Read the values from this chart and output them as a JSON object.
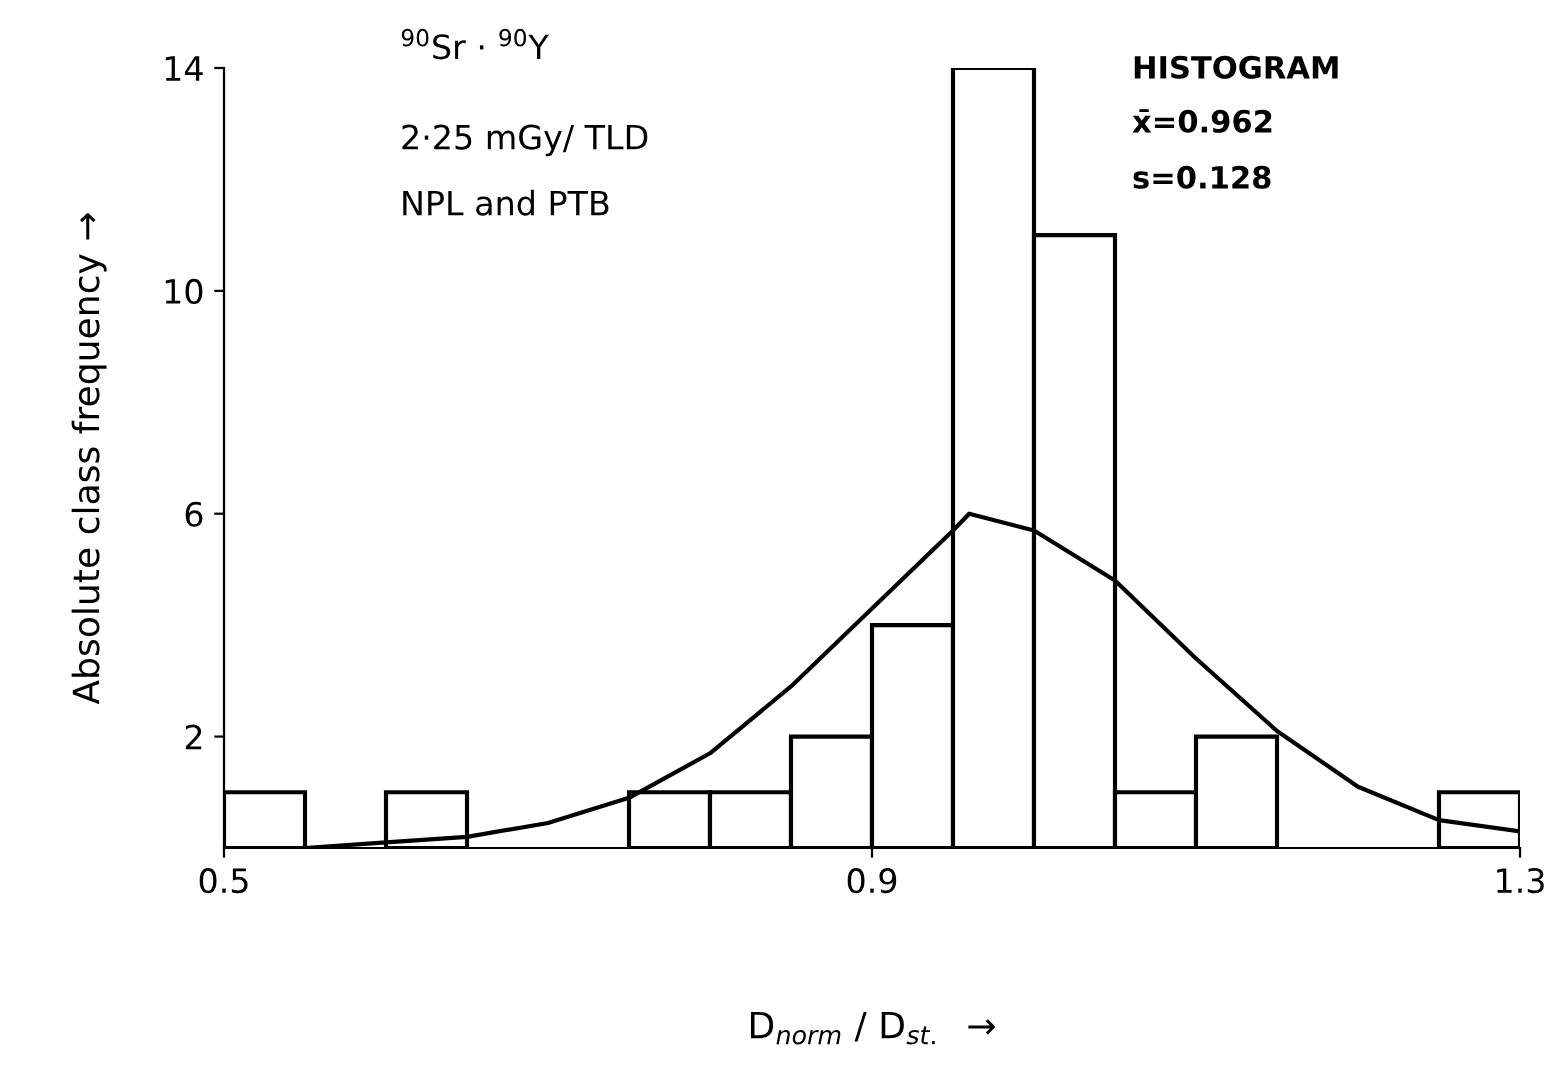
{
  "chart_data": {
    "type": "histogram",
    "xlabel": "D$_{norm}$ / D$_{st.}$  →",
    "ylabel": "Absolute class frequency →",
    "annotations": [
      "$^{90}$Sr · $^{90}$Y",
      "2·25 mGy/ TLD",
      "NPL and PTB",
      "HISTOGRAM",
      "x̄=0.962",
      "s=0.128"
    ],
    "bins": [
      0.5,
      0.55,
      0.6,
      0.65,
      0.7,
      0.75,
      0.8,
      0.85,
      0.9,
      0.95,
      1.0,
      1.05,
      1.1,
      1.15,
      1.2,
      1.25,
      1.3
    ],
    "values": [
      1,
      0,
      1,
      0,
      0,
      1,
      1,
      2,
      4,
      14,
      11,
      1,
      2,
      0,
      0,
      1
    ],
    "color": "#ffffff",
    "series": [
      {
        "type": "line",
        "color": "#000000",
        "x": [
          0.55,
          0.6,
          0.65,
          0.7,
          0.75,
          0.8,
          0.85,
          0.9,
          0.95,
          0.96,
          1.0,
          1.05,
          1.1,
          1.15,
          1.2,
          1.25,
          1.3
        ],
        "values": [
          0.0,
          0.1,
          0.2,
          0.45,
          0.9,
          1.7,
          2.9,
          4.3,
          5.7,
          6.0,
          5.7,
          4.8,
          3.4,
          2.1,
          1.1,
          0.5,
          0.3
        ]
      }
    ],
    "xlim": [
      0.5,
      1.3
    ],
    "xticks": [
      0.5,
      0.9,
      1.3
    ],
    "ylim": [
      0,
      14
    ],
    "yticks": [
      2,
      6,
      10,
      14
    ],
    "grid": false,
    "legend": false
  }
}
